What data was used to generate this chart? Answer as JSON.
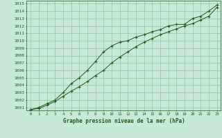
{
  "x": [
    0,
    1,
    2,
    3,
    4,
    5,
    6,
    7,
    8,
    9,
    10,
    11,
    12,
    13,
    14,
    15,
    16,
    17,
    18,
    19,
    20,
    21,
    22,
    23
  ],
  "line1_upper": [
    1000.7,
    1001.0,
    1001.5,
    1002.0,
    1003.0,
    1004.2,
    1005.0,
    1006.0,
    1007.2,
    1008.5,
    1009.3,
    1009.8,
    1010.0,
    1010.5,
    1010.8,
    1011.2,
    1011.5,
    1012.0,
    1012.2,
    1012.2,
    1013.0,
    1013.3,
    1014.0,
    1014.8
  ],
  "line2_lower": [
    1000.7,
    1000.85,
    1001.3,
    1001.8,
    1002.5,
    1003.2,
    1003.8,
    1004.5,
    1005.3,
    1006.0,
    1007.0,
    1007.8,
    1008.5,
    1009.2,
    1009.8,
    1010.3,
    1010.8,
    1011.2,
    1011.6,
    1012.0,
    1012.3,
    1012.8,
    1013.3,
    1014.5
  ],
  "ylim_min": 1000.6,
  "ylim_max": 1015.4,
  "xlim_min": -0.5,
  "xlim_max": 23.5,
  "yticks": [
    1001,
    1002,
    1003,
    1004,
    1005,
    1006,
    1007,
    1008,
    1009,
    1010,
    1011,
    1012,
    1013,
    1014,
    1015
  ],
  "xticks": [
    0,
    1,
    2,
    3,
    4,
    5,
    6,
    7,
    8,
    9,
    10,
    11,
    12,
    13,
    14,
    15,
    16,
    17,
    18,
    19,
    20,
    21,
    22,
    23
  ],
  "line_color": "#1a5c1a",
  "marker": "+",
  "bg_color": "#c8e8d8",
  "grid_color": "#88b898",
  "xlabel": "Graphe pression niveau de la mer (hPa)",
  "tick_color": "#1a5c1a",
  "xlabel_color": "#1a5c1a"
}
